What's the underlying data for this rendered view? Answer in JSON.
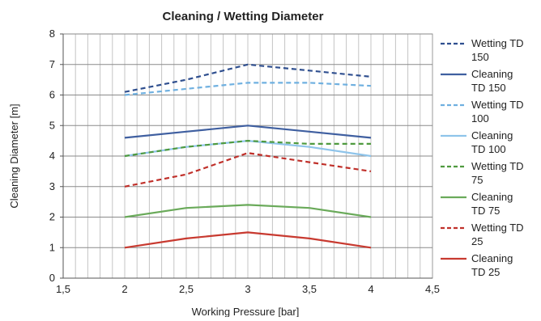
{
  "chart_data": {
    "type": "line",
    "title": "Cleaning / Wetting Diameter",
    "xlabel": "Working Pressure [bar]",
    "ylabel": "Cleaning Diameter [m]",
    "xlim": [
      1.5,
      4.5
    ],
    "ylim": [
      0,
      8
    ],
    "x_ticks": [
      "1,5",
      "2",
      "2,5",
      "3",
      "3,5",
      "4",
      "4,5"
    ],
    "x_tick_values": [
      1.5,
      2,
      2.5,
      3,
      3.5,
      4,
      4.5
    ],
    "y_ticks": [
      "0",
      "1",
      "2",
      "3",
      "4",
      "5",
      "6",
      "7",
      "8"
    ],
    "y_tick_values": [
      0,
      1,
      2,
      3,
      4,
      5,
      6,
      7,
      8
    ],
    "grid": true,
    "grid_x_step": 0.1,
    "legend_position": "right",
    "x": [
      2,
      2.5,
      3,
      3.5,
      4
    ],
    "series": [
      {
        "name": "Wetting TD 150",
        "legend_lines": [
          "Wetting TD",
          "150"
        ],
        "values": [
          6.1,
          6.5,
          7.0,
          6.8,
          6.6
        ],
        "color": "#2f4f8f",
        "dash": true
      },
      {
        "name": "Cleaning TD 150",
        "legend_lines": [
          "Cleaning",
          "TD 150"
        ],
        "values": [
          4.6,
          4.8,
          5.0,
          4.8,
          4.6
        ],
        "color": "#3f5fa0",
        "dash": false
      },
      {
        "name": "Wetting TD 100",
        "legend_lines": [
          "Wetting TD",
          "100"
        ],
        "values": [
          6.0,
          6.2,
          6.4,
          6.4,
          6.3
        ],
        "color": "#6fb0e0",
        "dash": true
      },
      {
        "name": "Cleaning TD 100",
        "legend_lines": [
          "Cleaning",
          "TD 100"
        ],
        "values": [
          4.0,
          4.3,
          4.5,
          4.3,
          4.0
        ],
        "color": "#8ec4ea",
        "dash": false
      },
      {
        "name": "Wetting TD 75",
        "legend_lines": [
          "Wetting TD",
          "75"
        ],
        "values": [
          4.0,
          4.3,
          4.5,
          4.4,
          4.4
        ],
        "color": "#4f9a3f",
        "dash": true
      },
      {
        "name": "Cleaning TD 75",
        "legend_lines": [
          "Cleaning",
          "TD 75"
        ],
        "values": [
          2.0,
          2.3,
          2.4,
          2.3,
          2.0
        ],
        "color": "#6aaa5a",
        "dash": false
      },
      {
        "name": "Wetting TD 25",
        "legend_lines": [
          "Wetting TD",
          "25"
        ],
        "values": [
          3.0,
          3.4,
          4.1,
          3.8,
          3.5
        ],
        "color": "#c0302a",
        "dash": true
      },
      {
        "name": "Cleaning TD 25",
        "legend_lines": [
          "Cleaning",
          "TD 25"
        ],
        "values": [
          1.0,
          1.3,
          1.5,
          1.3,
          1.0
        ],
        "color": "#c83a30",
        "dash": false
      }
    ]
  }
}
